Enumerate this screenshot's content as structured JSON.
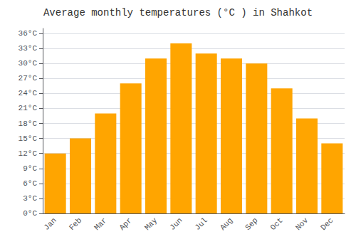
{
  "chart_data": {
    "type": "bar",
    "title": "Average monthly temperatures (°C ) in Shahkot",
    "categories": [
      "Jan",
      "Feb",
      "Mar",
      "Apr",
      "May",
      "Jun",
      "Jul",
      "Aug",
      "Sep",
      "Oct",
      "Nov",
      "Dec"
    ],
    "values": [
      12,
      15,
      20,
      26,
      31,
      34,
      32,
      31,
      30,
      25,
      19,
      14
    ],
    "color": "#FFA500",
    "ylim": [
      0,
      37
    ],
    "yticks": [
      {
        "value": 0,
        "label": "0°C"
      },
      {
        "value": 3,
        "label": "3°C"
      },
      {
        "value": 6,
        "label": "6°C"
      },
      {
        "value": 9,
        "label": "9°C"
      },
      {
        "value": 12,
        "label": "12°C"
      },
      {
        "value": 15,
        "label": "15°C"
      },
      {
        "value": 18,
        "label": "18°C"
      },
      {
        "value": 21,
        "label": "21°C"
      },
      {
        "value": 24,
        "label": "24°C"
      },
      {
        "value": 27,
        "label": "27°C"
      },
      {
        "value": 30,
        "label": "30°C"
      },
      {
        "value": 33,
        "label": "33°C"
      },
      {
        "value": 36,
        "label": "36°C"
      }
    ],
    "grid": true
  }
}
